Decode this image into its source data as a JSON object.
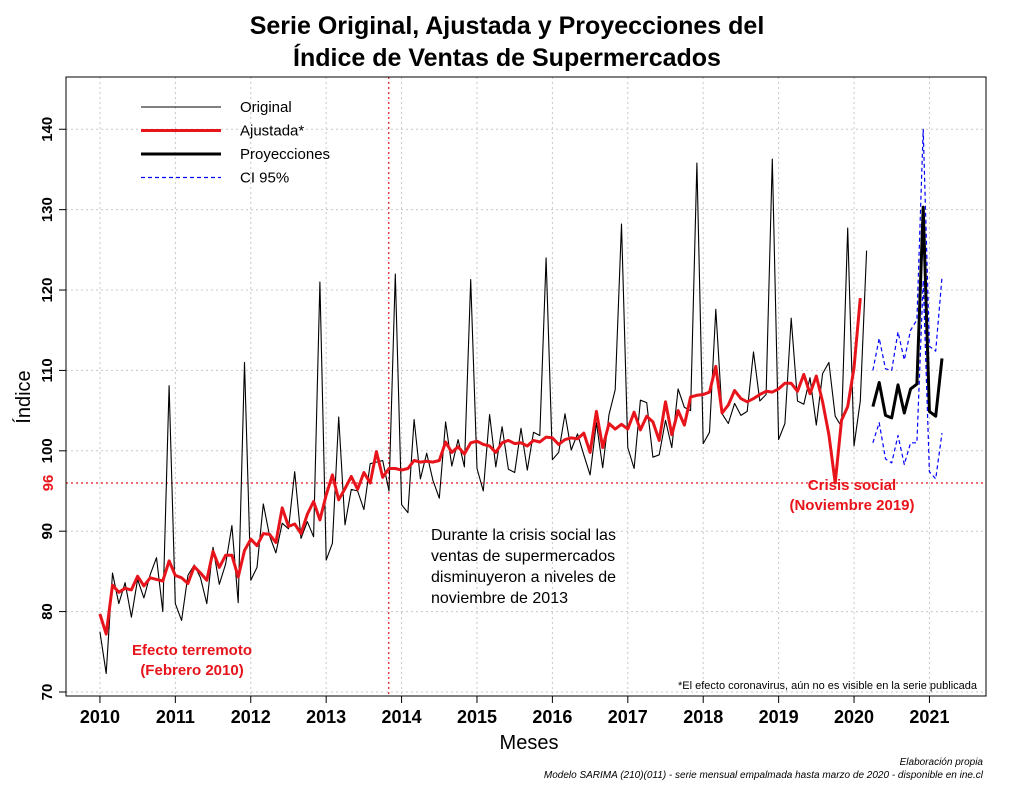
{
  "chart_data": {
    "type": "line",
    "title_line1": "Serie Original, Ajustada y Proyecciones del",
    "title_line2": "Índice de Ventas de Supermercados",
    "xlabel": "Meses",
    "ylabel": "Índice",
    "xlim": [
      2009.55,
      2021.75
    ],
    "ylim": [
      69.5,
      146.5
    ],
    "x_ticks": [
      2010,
      2011,
      2012,
      2013,
      2014,
      2015,
      2016,
      2017,
      2018,
      2019,
      2020,
      2021
    ],
    "y_ticks": [
      70,
      80,
      90,
      100,
      110,
      120,
      130,
      140
    ],
    "grid": true,
    "legend_position": "top-left",
    "reference_lines": {
      "horizontal": {
        "value": 96,
        "label": "96",
        "color": "#e8141b",
        "style": "dotted"
      },
      "vertical": {
        "value": 2013.83,
        "color": "#e8141b",
        "style": "dotted"
      }
    },
    "series": [
      {
        "name": "Original",
        "color": "#000000",
        "style": "thin",
        "start": 2010.0,
        "values": [
          77.5,
          72.3,
          84.8,
          81.0,
          83.6,
          79.3,
          84.0,
          81.7,
          84.6,
          86.7,
          80.0,
          108.1,
          81.0,
          78.9,
          84.5,
          85.8,
          84.2,
          81.0,
          88.0,
          83.4,
          85.9,
          90.7,
          81.1,
          111.0,
          83.9,
          85.5,
          93.4,
          89.4,
          87.3,
          91.0,
          90.3,
          97.4,
          89.1,
          91.2,
          89.3,
          121.0,
          86.4,
          88.5,
          104.2,
          90.8,
          95.2,
          95.0,
          92.7,
          98.4,
          98.6,
          98.8,
          95.0,
          122.0,
          93.3,
          92.3,
          103.9,
          96.5,
          99.7,
          96.3,
          94.1,
          103.6,
          98.1,
          101.4,
          98.0,
          121.3,
          97.8,
          95.0,
          104.5,
          98.0,
          103.0,
          97.7,
          97.3,
          102.8,
          97.6,
          102.3,
          101.9,
          124.0,
          98.9,
          99.8,
          104.6,
          100.1,
          102.1,
          99.5,
          97.0,
          103.5,
          97.9,
          104.5,
          107.6,
          128.2,
          100.4,
          97.8,
          106.3,
          106.0,
          99.2,
          99.5,
          103.8,
          100.4,
          107.7,
          105.4,
          105.0,
          135.8,
          100.9,
          102.3,
          117.6,
          104.6,
          103.4,
          105.9,
          104.4,
          104.9,
          112.3,
          106.2,
          107.0,
          136.3,
          101.4,
          103.4,
          116.5,
          106.2,
          105.8,
          109.1,
          103.2,
          109.6,
          111.0,
          104.3,
          103.0,
          127.7,
          100.6,
          106.2,
          124.9
        ]
      },
      {
        "name": "Ajustada*",
        "color": "#e8141b",
        "style": "thick",
        "start": 2010.0,
        "values": [
          79.7,
          77.2,
          83.3,
          82.4,
          82.9,
          82.7,
          84.4,
          83.2,
          84.2,
          84.0,
          83.8,
          86.3,
          84.5,
          84.2,
          83.5,
          85.6,
          84.8,
          83.9,
          87.5,
          85.5,
          87.0,
          87.0,
          84.3,
          87.6,
          89.0,
          88.2,
          89.7,
          89.6,
          88.6,
          92.9,
          90.6,
          90.9,
          89.7,
          92.1,
          93.7,
          91.4,
          94.5,
          97.0,
          93.9,
          95.3,
          96.8,
          95.2,
          97.3,
          96.0,
          99.9,
          96.7,
          97.8,
          97.8,
          97.6,
          97.8,
          98.8,
          98.6,
          98.7,
          98.6,
          98.8,
          101.1,
          99.8,
          100.5,
          99.6,
          101.0,
          101.2,
          100.8,
          100.6,
          99.8,
          101.0,
          101.3,
          100.9,
          101.0,
          100.6,
          101.3,
          101.1,
          101.7,
          101.6,
          100.8,
          101.4,
          101.6,
          101.5,
          102.2,
          99.8,
          104.9,
          100.4,
          103.4,
          102.7,
          103.3,
          102.7,
          104.8,
          102.6,
          104.3,
          103.6,
          101.3,
          106.1,
          102.0,
          105.0,
          103.2,
          106.7,
          106.9,
          107.0,
          107.3,
          110.5,
          104.7,
          105.7,
          107.5,
          106.5,
          106.1,
          106.5,
          107.0,
          107.4,
          107.3,
          107.7,
          108.4,
          108.4,
          107.4,
          109.5,
          107.1,
          109.3,
          106.1,
          102.0,
          96.0,
          103.8,
          105.5,
          110.3,
          119.0
        ]
      },
      {
        "name": "Proyecciones",
        "color": "#000000",
        "style": "thick",
        "start": 2020.25,
        "values": [
          105.5,
          108.5,
          104.4,
          104.1,
          108.2,
          104.7,
          107.7,
          108.3,
          130.3,
          104.9,
          104.3,
          111.5
        ]
      },
      {
        "name": "CI 95%",
        "color": "#0000ff",
        "style": "dashed",
        "start": 2020.25,
        "upper": [
          110.0,
          114.0,
          110.2,
          110.0,
          114.8,
          111.3,
          115.0,
          116.3,
          140.0,
          113.0,
          112.4,
          121.6
        ],
        "lower": [
          101.0,
          103.5,
          99.0,
          98.5,
          101.9,
          98.3,
          101.0,
          101.0,
          121.2,
          97.4,
          96.5,
          102.2
        ]
      }
    ],
    "annotations": [
      {
        "id": "terremoto",
        "line1": "Efecto terremoto",
        "line2": "(Febrero 2010)"
      },
      {
        "id": "crisis",
        "line1": "Crisis social",
        "line2": "(Noviembre 2019)"
      },
      {
        "id": "note",
        "lines": [
          "Durante la crisis social las",
          "ventas de supermercados",
          "disminuyeron a niveles de",
          "noviembre de 2013"
        ]
      },
      {
        "id": "covid",
        "text": "*El efecto coronavirus, aún no es visible en la serie publicada"
      }
    ],
    "footer": {
      "line1": "Elaboración propia",
      "line2": "Modelo SARIMA (210)(011) - serie mensual empalmada hasta marzo de 2020 - disponible en ine.cl"
    }
  }
}
